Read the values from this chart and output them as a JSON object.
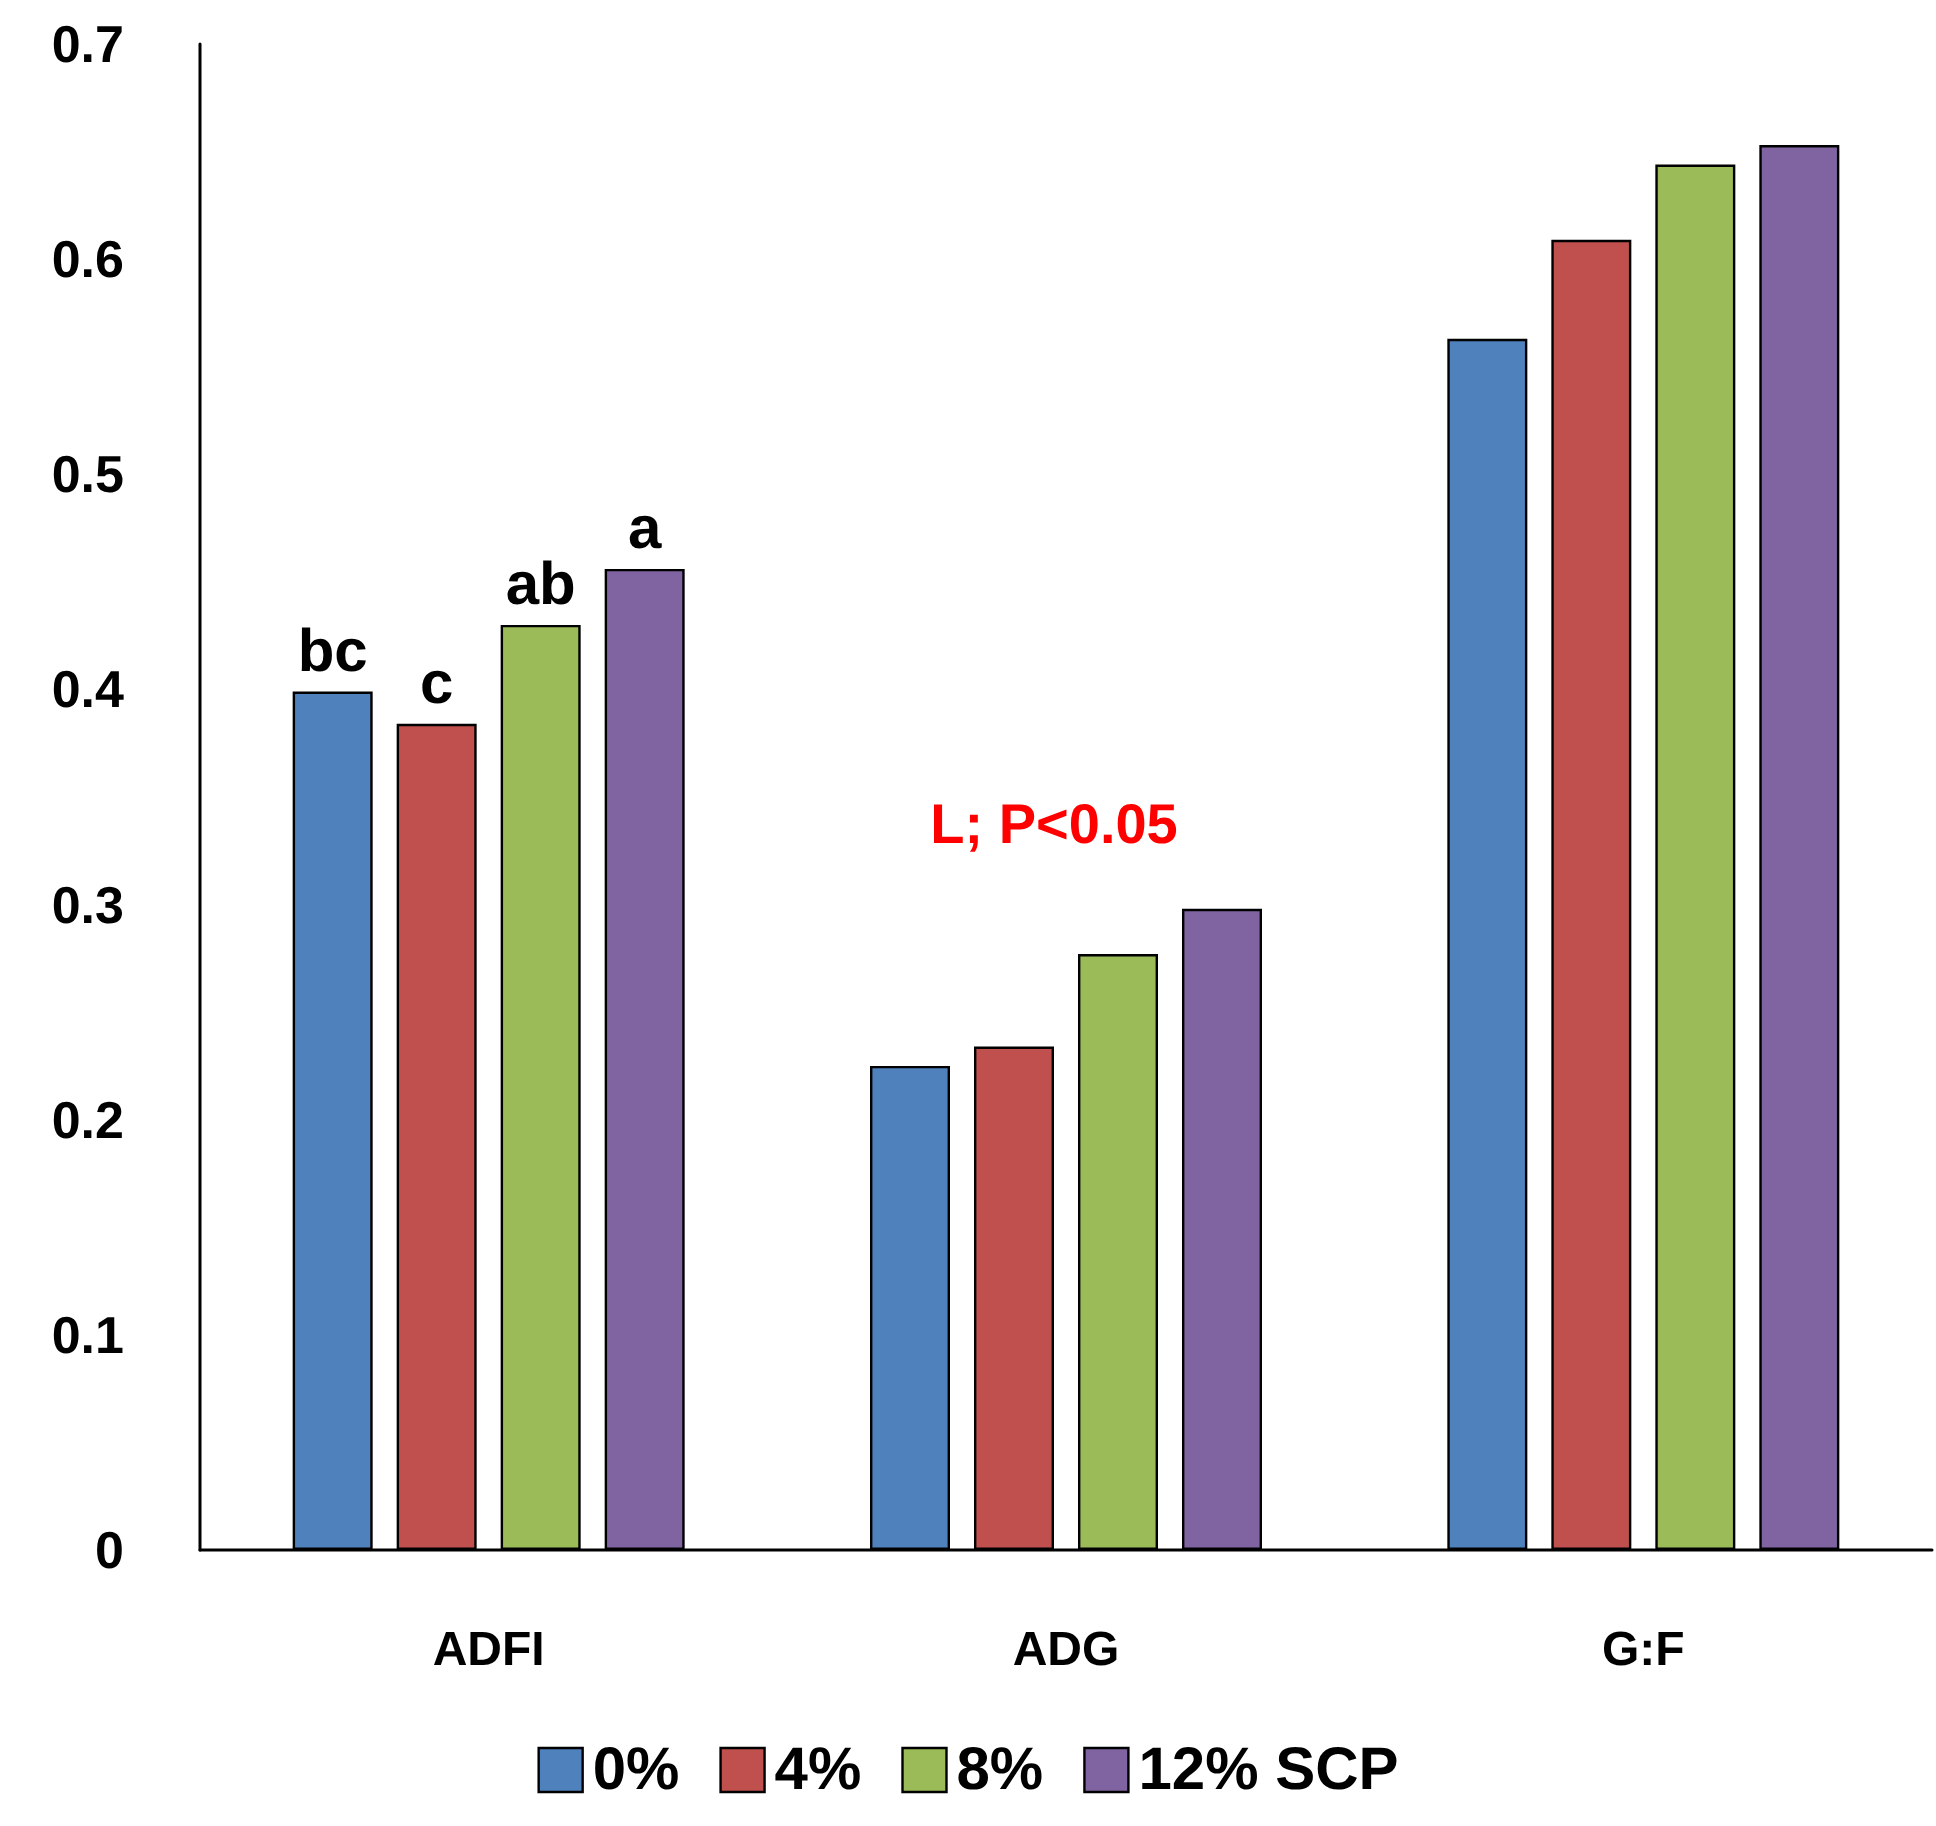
{
  "chart_data": {
    "type": "bar",
    "categories": [
      "ADFI",
      "ADG",
      "G:F"
    ],
    "series": [
      {
        "name": "0%",
        "color": "#4f81bd",
        "values": [
          0.399,
          0.225,
          0.563
        ],
        "value_labels": [
          "bc",
          null,
          null
        ]
      },
      {
        "name": "4%",
        "color": "#c0504d",
        "values": [
          0.384,
          0.234,
          0.609
        ],
        "value_labels": [
          "c",
          null,
          null
        ]
      },
      {
        "name": "8%",
        "color": "#9bbb59",
        "values": [
          0.43,
          0.277,
          0.644
        ],
        "value_labels": [
          "ab",
          null,
          null
        ]
      },
      {
        "name": "12% SCP",
        "color": "#8064a2",
        "values": [
          0.456,
          0.298,
          0.653
        ],
        "value_labels": [
          "a",
          null,
          null
        ]
      }
    ],
    "ylim": [
      0,
      0.7
    ],
    "yticks": [
      0,
      0.1,
      0.2,
      0.3,
      0.4,
      0.5,
      0.6,
      0.7
    ],
    "grid": false,
    "legend": "bottom",
    "annotations": [
      "L; P<0.05"
    ]
  }
}
